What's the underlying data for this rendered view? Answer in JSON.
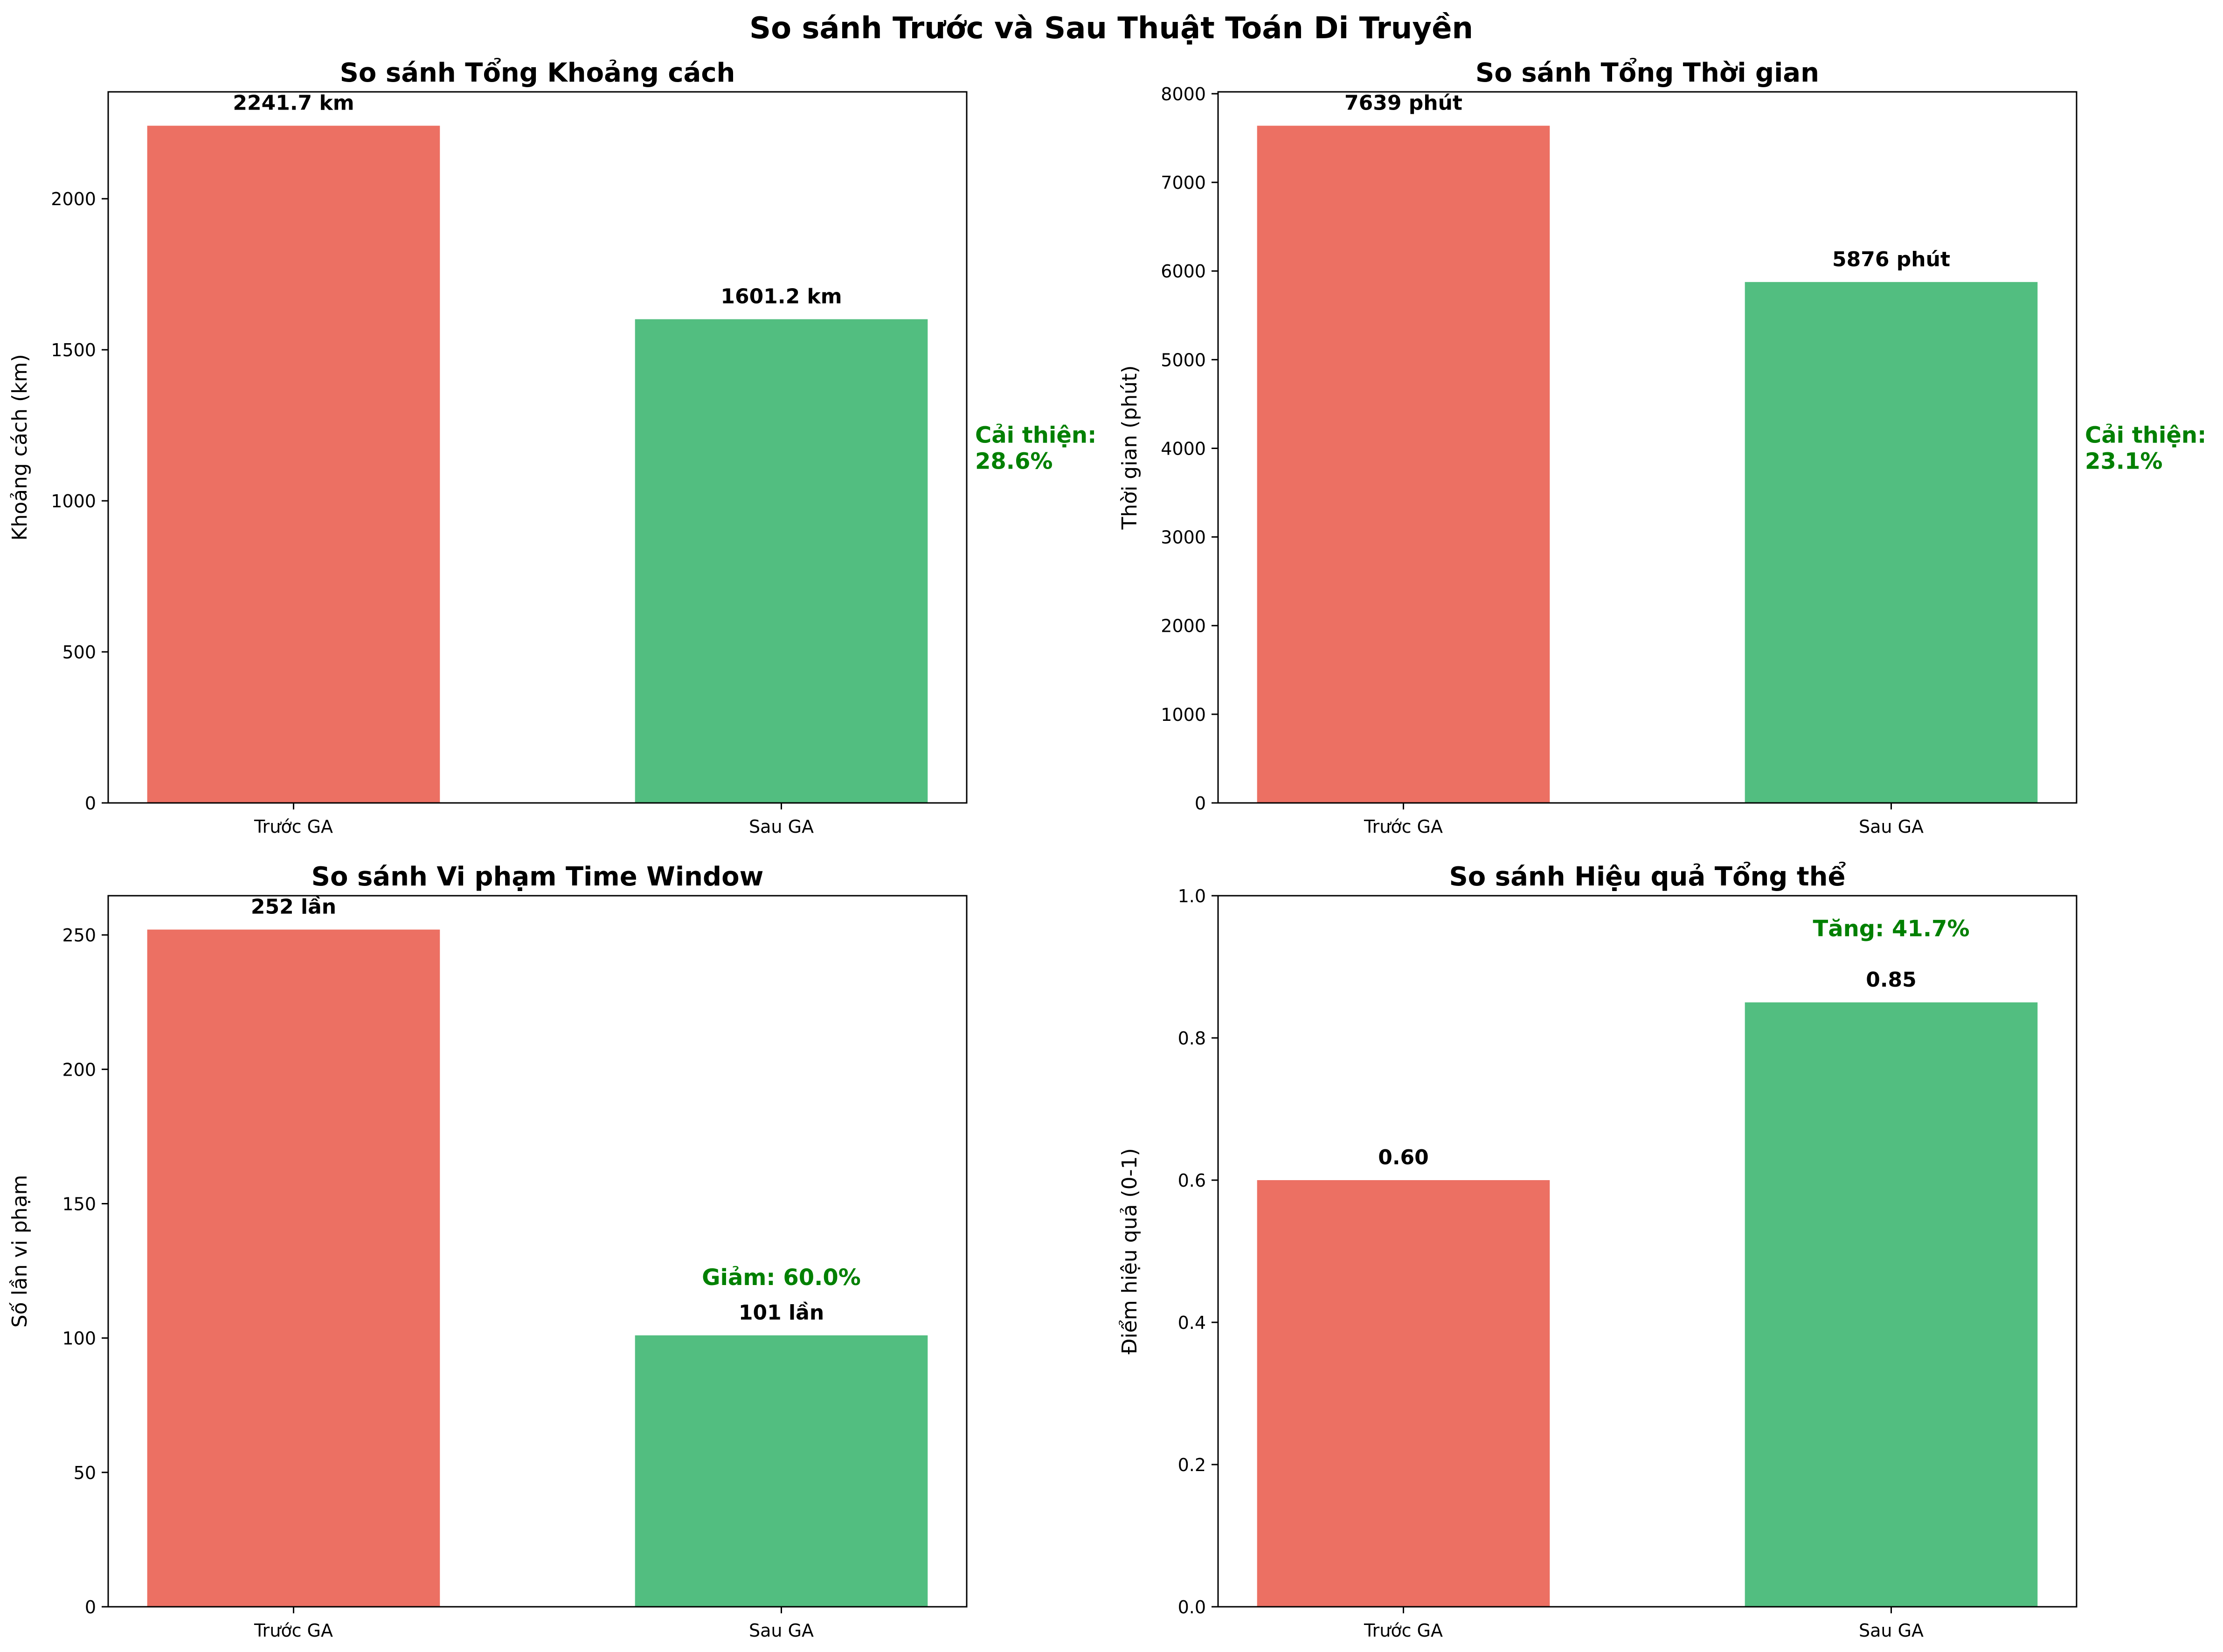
{
  "figure": {
    "suptitle": "So sánh Trước và Sau Thuật Toán Di Truyền"
  },
  "colors": {
    "before": "#EC7063",
    "after": "#52BE80",
    "improvement_text": "#008000",
    "label_text": "#000000"
  },
  "chart_data": [
    {
      "type": "bar",
      "title": "So sánh Tổng Khoảng cách",
      "xlabel": "",
      "ylabel": "Khoảng cách (km)",
      "categories": [
        "Trước GA",
        "Sau GA"
      ],
      "values": [
        2241.7,
        1601.2
      ],
      "value_labels": [
        "2241.7 km",
        "1601.2 km"
      ],
      "ylim": [
        0,
        2353.8
      ],
      "yticks": [
        0,
        500,
        1000,
        1500,
        2000
      ],
      "ytick_labels": [
        "0",
        "500",
        "1000",
        "1500",
        "2000"
      ],
      "annotation": "Cải thiện:\n28.6%",
      "annotation_position": "right"
    },
    {
      "type": "bar",
      "title": "So sánh Tổng Thời gian",
      "xlabel": "",
      "ylabel": "Thời gian (phút)",
      "categories": [
        "Trước GA",
        "Sau GA"
      ],
      "values": [
        7639,
        5876
      ],
      "value_labels": [
        "7639 phút",
        "5876 phút"
      ],
      "ylim": [
        0,
        8021
      ],
      "yticks": [
        0,
        1000,
        2000,
        3000,
        4000,
        5000,
        6000,
        7000,
        8000
      ],
      "ytick_labels": [
        "0",
        "1000",
        "2000",
        "3000",
        "4000",
        "5000",
        "6000",
        "7000",
        "8000"
      ],
      "annotation": "Cải thiện:\n23.1%",
      "annotation_position": "right"
    },
    {
      "type": "bar",
      "title": "So sánh Vi phạm Time Window",
      "xlabel": "",
      "ylabel": "Số lần vi phạm",
      "categories": [
        "Trước GA",
        "Sau GA"
      ],
      "values": [
        252,
        101
      ],
      "value_labels": [
        "252 lần",
        "101 lần"
      ],
      "ylim": [
        0,
        264.6
      ],
      "yticks": [
        0,
        50,
        100,
        150,
        200,
        250
      ],
      "ytick_labels": [
        "0",
        "50",
        "100",
        "150",
        "200",
        "250"
      ],
      "annotation": "Giảm: 60.0%",
      "annotation_position": "above-after"
    },
    {
      "type": "bar",
      "title": "So sánh Hiệu quả Tổng thể",
      "xlabel": "",
      "ylabel": "Điểm hiệu quả (0-1)",
      "categories": [
        "Trước GA",
        "Sau GA"
      ],
      "values": [
        0.6,
        0.85
      ],
      "value_labels": [
        "0.60",
        "0.85"
      ],
      "ylim": [
        0,
        1.0
      ],
      "yticks": [
        0,
        0.2,
        0.4,
        0.6,
        0.8,
        1.0
      ],
      "ytick_labels": [
        "0.0",
        "0.2",
        "0.4",
        "0.6",
        "0.8",
        "1.0"
      ],
      "annotation": "Tăng: 41.7%",
      "annotation_position": "above-after"
    }
  ]
}
